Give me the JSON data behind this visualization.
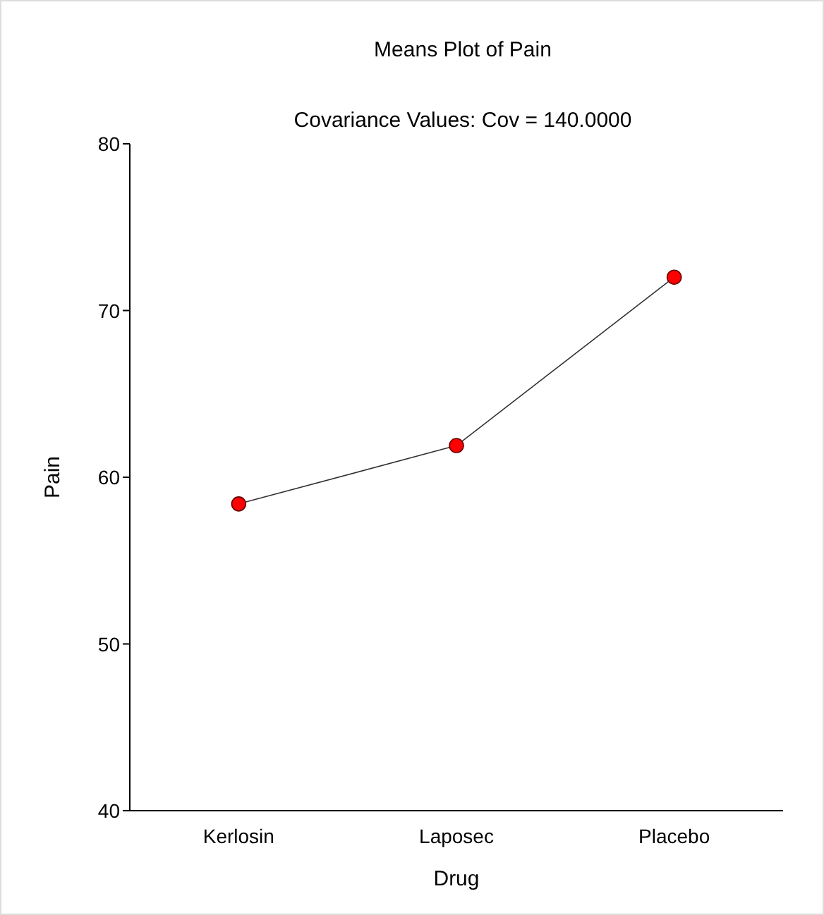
{
  "chart_data": {
    "type": "line",
    "title": "Means Plot of Pain",
    "subtitle": "Covariance Values: Cov = 140.0000",
    "xlabel": "Drug",
    "ylabel": "Pain",
    "categories": [
      "Kerlosin",
      "Laposec",
      "Placebo"
    ],
    "series": [
      {
        "color": "#ff0000",
        "values": [
          58.4,
          61.9,
          72.0
        ]
      }
    ],
    "ylim": [
      40,
      80
    ],
    "yticks": [
      40,
      50,
      60,
      70,
      80
    ],
    "marker": "circle",
    "line_style": "solid"
  }
}
